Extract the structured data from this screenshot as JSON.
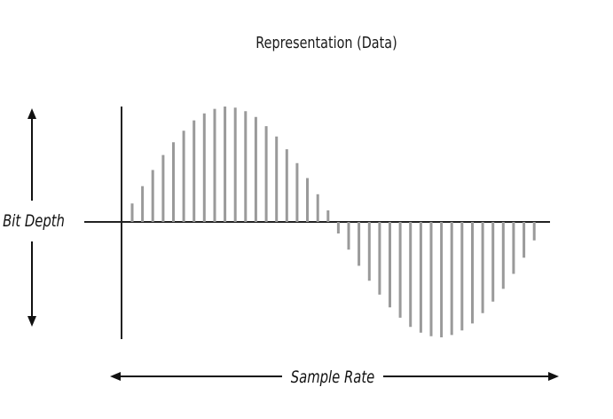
{
  "diagram": {
    "title": "Representation (Data)",
    "bit_depth_label": "Bit Depth",
    "sample_rate_label": "Sample Rate",
    "colors": {
      "axis": "#222222",
      "samples": "#9a9a9a",
      "arrows": "#111111",
      "background": "#ffffff"
    }
  },
  "chart_data": {
    "type": "bar",
    "series": [
      {
        "values": [
          0.16,
          0.31,
          0.45,
          0.58,
          0.69,
          0.79,
          0.88,
          0.94,
          0.98,
          1.0,
          0.99,
          0.96,
          0.91,
          0.83,
          0.74,
          0.63,
          0.51,
          0.38,
          0.24,
          0.1,
          -0.1,
          -0.24,
          -0.38,
          -0.51,
          -0.63,
          -0.74,
          -0.83,
          -0.91,
          -0.96,
          -0.99,
          -1.0,
          -0.98,
          -0.94,
          -0.88,
          -0.79,
          -0.69,
          -0.58,
          -0.45,
          -0.31,
          -0.16
        ]
      }
    ],
    "xlabel": "Sample Rate",
    "ylabel": "Bit Depth",
    "ylim": [
      -1,
      1
    ],
    "grid": false
  }
}
